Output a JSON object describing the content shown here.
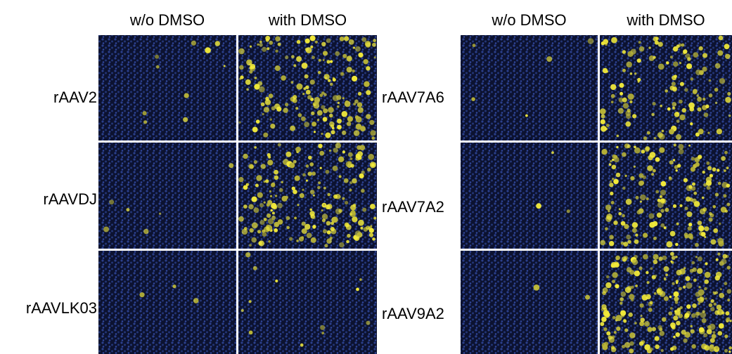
{
  "left_panel": {
    "column_headers": [
      "w/o DMSO",
      "with DMSO"
    ],
    "rows": [
      "rAAV2",
      "rAAVDJ",
      "rAAVLK03"
    ]
  },
  "right_panel": {
    "column_headers": [
      "w/o DMSO",
      "with DMSO"
    ],
    "rows": [
      "rAAV7A6",
      "rAAV7A2",
      "rAAV9A2"
    ]
  }
}
